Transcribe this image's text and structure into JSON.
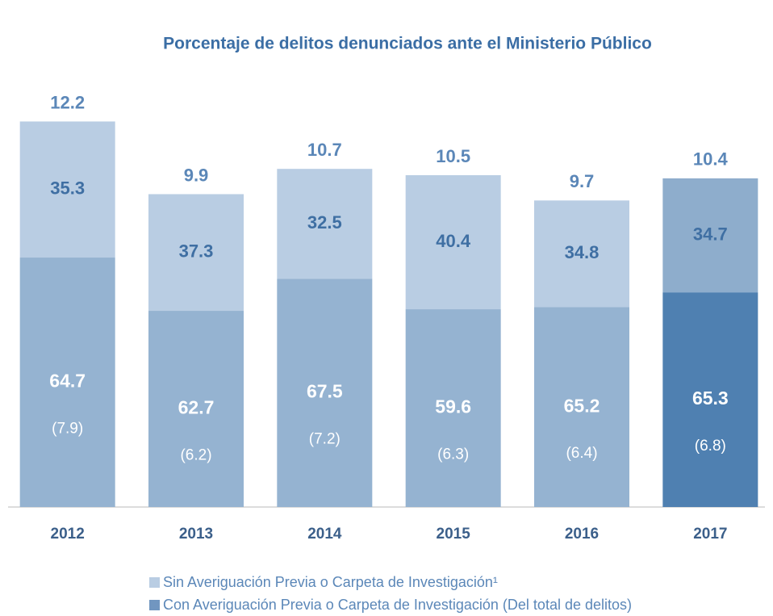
{
  "chart_data": {
    "type": "bar",
    "title": "Porcentaje de delitos denunciados ante el Ministerio Público",
    "categories": [
      "2012",
      "2013",
      "2014",
      "2015",
      "2016",
      "2017"
    ],
    "totals": [
      12.2,
      9.9,
      10.7,
      10.5,
      9.7,
      10.4
    ],
    "ylim": [
      0,
      14
    ],
    "series": [
      {
        "name": "Sin Averiguación Previa o Carpeta de Investigación¹",
        "color": "#b9cde3",
        "colors": [
          "#b9cde3",
          "#b9cde3",
          "#b9cde3",
          "#b9cde3",
          "#b9cde3",
          "#8eadcc"
        ],
        "values": [
          35.3,
          37.3,
          32.5,
          40.4,
          34.8,
          34.7
        ]
      },
      {
        "name": "Con Averiguación Previa o Carpeta de Investigación (Del total de delitos)",
        "color": "#7196c0",
        "colors": [
          "#95b3d1",
          "#95b3d1",
          "#95b3d1",
          "#95b3d1",
          "#95b3d1",
          "#4f80b1"
        ],
        "values": [
          64.7,
          62.7,
          67.5,
          59.6,
          65.2,
          65.3
        ],
        "absolute": {
          "values": [
            7.9,
            6.2,
            7.2,
            6.3,
            6.4,
            6.8
          ],
          "value_labels": [
            "(7.9)",
            "(6.2)",
            "(7.2)",
            "(6.3)",
            "(6.4)",
            "(6.8)"
          ]
        }
      }
    ]
  }
}
